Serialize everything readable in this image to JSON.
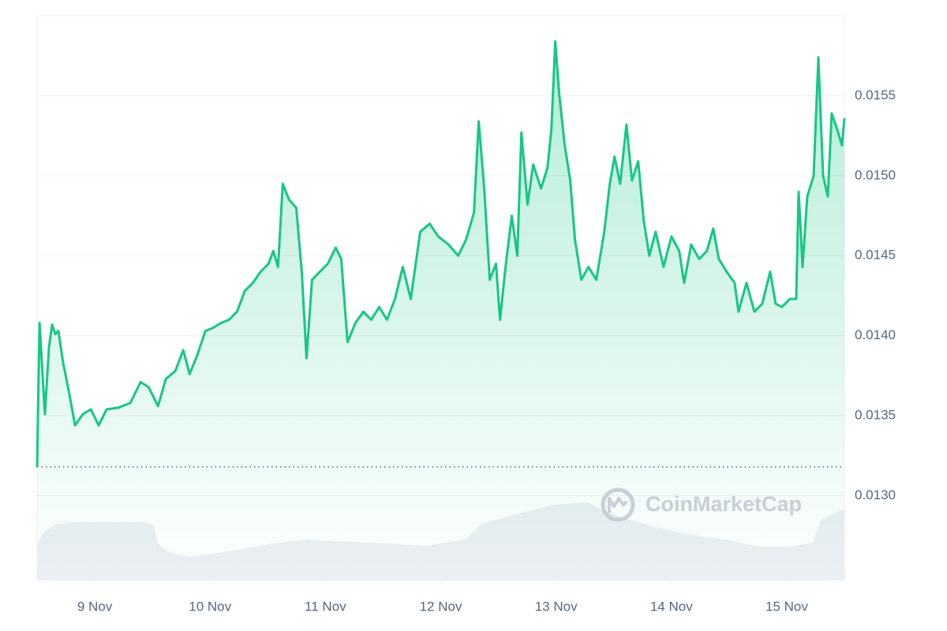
{
  "chart_data": {
    "type": "line",
    "watermark": "CoinMarketCap",
    "x": [
      8.5,
      8.521,
      8.568,
      8.603,
      8.63,
      8.658,
      8.685,
      8.726,
      8.781,
      8.829,
      8.897,
      8.966,
      9.034,
      9.103,
      9.205,
      9.308,
      9.397,
      9.466,
      9.548,
      9.616,
      9.699,
      9.767,
      9.822,
      9.89,
      9.959,
      10.027,
      10.096,
      10.164,
      10.233,
      10.301,
      10.37,
      10.438,
      10.507,
      10.548,
      10.589,
      10.63,
      10.685,
      10.747,
      10.795,
      10.836,
      10.884,
      10.952,
      11.021,
      11.089,
      11.137,
      11.192,
      11.26,
      11.329,
      11.397,
      11.466,
      11.534,
      11.603,
      11.671,
      11.74,
      11.822,
      11.904,
      11.979,
      12.068,
      12.151,
      12.219,
      12.288,
      12.329,
      12.377,
      12.425,
      12.479,
      12.514,
      12.562,
      12.616,
      12.664,
      12.699,
      12.753,
      12.801,
      12.87,
      12.925,
      12.959,
      12.993,
      13.027,
      13.075,
      13.123,
      13.164,
      13.219,
      13.281,
      13.349,
      13.418,
      13.466,
      13.507,
      13.555,
      13.61,
      13.658,
      13.712,
      13.76,
      13.808,
      13.863,
      13.932,
      14.0,
      14.068,
      14.11,
      14.171,
      14.24,
      14.308,
      14.363,
      14.411,
      14.479,
      14.548,
      14.582,
      14.651,
      14.719,
      14.788,
      14.856,
      14.904,
      14.959,
      15.027,
      15.082,
      15.103,
      15.137,
      15.178,
      15.233,
      15.274,
      15.315,
      15.356,
      15.39,
      15.438,
      15.479,
      15.5
    ],
    "series": [
      {
        "color": "#16c784",
        "values": [
          0.01318,
          0.01408,
          0.01351,
          0.01393,
          0.01407,
          0.01401,
          0.01403,
          0.01383,
          0.01363,
          0.01344,
          0.01351,
          0.01354,
          0.01344,
          0.01354,
          0.01355,
          0.01358,
          0.01371,
          0.01368,
          0.01356,
          0.01373,
          0.01378,
          0.01391,
          0.01376,
          0.01388,
          0.01403,
          0.01405,
          0.01408,
          0.0141,
          0.01415,
          0.01428,
          0.01433,
          0.0144,
          0.01445,
          0.01453,
          0.01443,
          0.01495,
          0.01485,
          0.0148,
          0.0144,
          0.01386,
          0.01435,
          0.0144,
          0.01445,
          0.01455,
          0.01448,
          0.01396,
          0.01408,
          0.01415,
          0.0141,
          0.01418,
          0.0141,
          0.01423,
          0.01443,
          0.01423,
          0.01465,
          0.0147,
          0.01462,
          0.01457,
          0.0145,
          0.0146,
          0.01477,
          0.01534,
          0.01492,
          0.01435,
          0.01445,
          0.0141,
          0.01443,
          0.01475,
          0.0145,
          0.01527,
          0.01482,
          0.01507,
          0.01492,
          0.01505,
          0.01529,
          0.01584,
          0.01551,
          0.01519,
          0.01497,
          0.0146,
          0.01435,
          0.01443,
          0.01435,
          0.01465,
          0.01495,
          0.01512,
          0.01495,
          0.01532,
          0.01497,
          0.01509,
          0.01472,
          0.0145,
          0.01465,
          0.01443,
          0.01462,
          0.01453,
          0.01433,
          0.01457,
          0.01448,
          0.01453,
          0.01467,
          0.01448,
          0.0144,
          0.01433,
          0.01415,
          0.01433,
          0.01415,
          0.0142,
          0.0144,
          0.0142,
          0.01418,
          0.01423,
          0.01423,
          0.0149,
          0.01443,
          0.01487,
          0.015,
          0.01574,
          0.015,
          0.01487,
          0.01539,
          0.01529,
          0.01519,
          0.01536
        ]
      }
    ],
    "xlim": [
      8.5,
      15.5
    ],
    "xticks": [
      {
        "value": 9,
        "label": "9 Nov"
      },
      {
        "value": 10,
        "label": "10 Nov"
      },
      {
        "value": 11,
        "label": "11 Nov"
      },
      {
        "value": 12,
        "label": "12 Nov"
      },
      {
        "value": 13,
        "label": "13 Nov"
      },
      {
        "value": 14,
        "label": "14 Nov"
      },
      {
        "value": 15,
        "label": "15 Nov"
      }
    ],
    "ylim": [
      0.01247,
      0.016
    ],
    "yticks": [
      {
        "value": 0.013,
        "label": "0.0130"
      },
      {
        "value": 0.0135,
        "label": "0.0135"
      },
      {
        "value": 0.014,
        "label": "0.0140"
      },
      {
        "value": 0.0145,
        "label": "0.0145"
      },
      {
        "value": 0.015,
        "label": "0.0150"
      },
      {
        "value": 0.0155,
        "label": "0.0155"
      }
    ],
    "grid": true
  }
}
